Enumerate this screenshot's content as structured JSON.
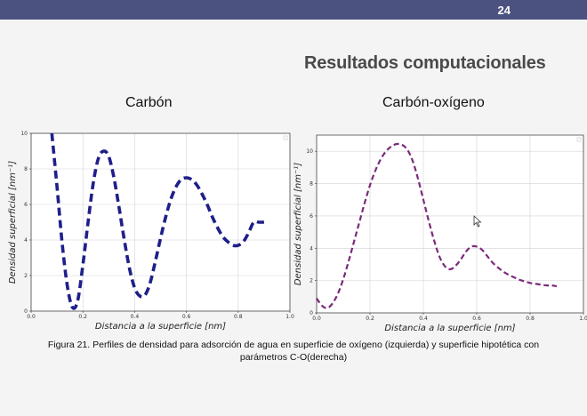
{
  "header": {
    "page_number": "24"
  },
  "slide": {
    "title": "Resultados computacionales",
    "caption_line1": "Figura 21. Perfiles de densidad para adsorción de agua en superficie de oxígeno (izquierda) y superficie hipotética con",
    "caption_line2": "parámetros C-O(derecha)"
  },
  "panels": {
    "left_label": "Carbón",
    "right_label": "Carbón-oxígeno"
  },
  "colors": {
    "topbar": "#4b5280",
    "left_series": "#1f1f8a",
    "right_series": "#7b2a7b"
  },
  "chart_data": [
    {
      "type": "line",
      "title": "Carbón",
      "xlabel": "Distancia a la superficie [nm]",
      "ylabel": "Densidad superficial [nm⁻¹]",
      "xlim": [
        0.0,
        1.0
      ],
      "ylim": [
        0,
        10
      ],
      "x_ticks": [
        "0.0",
        "0.2",
        "0.4",
        "0.6",
        "0.8",
        "1.0"
      ],
      "y_ticks": [
        "0",
        "2",
        "4",
        "6",
        "8",
        "10"
      ],
      "grid": true,
      "line_style": "dashed",
      "color": "#1f1f8a",
      "x": [
        0.08,
        0.1,
        0.12,
        0.14,
        0.16,
        0.18,
        0.2,
        0.22,
        0.24,
        0.26,
        0.28,
        0.3,
        0.32,
        0.34,
        0.36,
        0.38,
        0.4,
        0.42,
        0.44,
        0.46,
        0.48,
        0.5,
        0.52,
        0.54,
        0.56,
        0.58,
        0.6,
        0.62,
        0.64,
        0.66,
        0.68,
        0.7,
        0.72,
        0.74,
        0.76,
        0.78,
        0.8,
        0.82,
        0.84,
        0.86,
        0.88,
        0.9
      ],
      "y": [
        10.0,
        7.0,
        3.8,
        1.4,
        0.2,
        0.6,
        2.6,
        5.0,
        7.2,
        8.6,
        9.0,
        8.7,
        7.5,
        5.8,
        4.0,
        2.4,
        1.3,
        0.85,
        0.9,
        1.6,
        2.8,
        4.1,
        5.3,
        6.3,
        7.0,
        7.4,
        7.5,
        7.4,
        7.1,
        6.6,
        6.0,
        5.3,
        4.7,
        4.2,
        3.9,
        3.7,
        3.7,
        3.9,
        4.4,
        5.0,
        5.0,
        5.0
      ]
    },
    {
      "type": "line",
      "title": "Carbón-oxígeno",
      "xlabel": "Distancia a la superficie [nm]",
      "ylabel": "Densidad superficial [nm⁻¹]",
      "xlim": [
        0.0,
        1.0
      ],
      "ylim": [
        0,
        11
      ],
      "x_ticks": [
        "0.0",
        "0.2",
        "0.4",
        "0.6",
        "0.8",
        "1.0"
      ],
      "y_ticks": [
        "0",
        "2",
        "4",
        "6",
        "8",
        "10"
      ],
      "grid": true,
      "line_style": "dashed",
      "color": "#7b2a7b",
      "x": [
        0.0,
        0.02,
        0.04,
        0.06,
        0.08,
        0.1,
        0.12,
        0.14,
        0.16,
        0.18,
        0.2,
        0.22,
        0.24,
        0.26,
        0.28,
        0.3,
        0.32,
        0.34,
        0.36,
        0.38,
        0.4,
        0.42,
        0.44,
        0.46,
        0.48,
        0.5,
        0.52,
        0.54,
        0.56,
        0.58,
        0.6,
        0.62,
        0.64,
        0.66,
        0.68,
        0.7,
        0.72,
        0.74,
        0.76,
        0.78,
        0.8,
        0.82,
        0.84,
        0.86,
        0.88,
        0.9
      ],
      "y": [
        0.9,
        0.45,
        0.3,
        0.6,
        1.2,
        2.1,
        3.2,
        4.4,
        5.6,
        6.8,
        7.9,
        8.8,
        9.5,
        10.0,
        10.3,
        10.45,
        10.4,
        10.1,
        9.4,
        8.3,
        7.0,
        5.7,
        4.5,
        3.5,
        2.9,
        2.7,
        2.9,
        3.3,
        3.8,
        4.1,
        4.1,
        3.9,
        3.5,
        3.1,
        2.8,
        2.55,
        2.35,
        2.2,
        2.05,
        1.95,
        1.85,
        1.8,
        1.75,
        1.7,
        1.7,
        1.65
      ]
    }
  ]
}
